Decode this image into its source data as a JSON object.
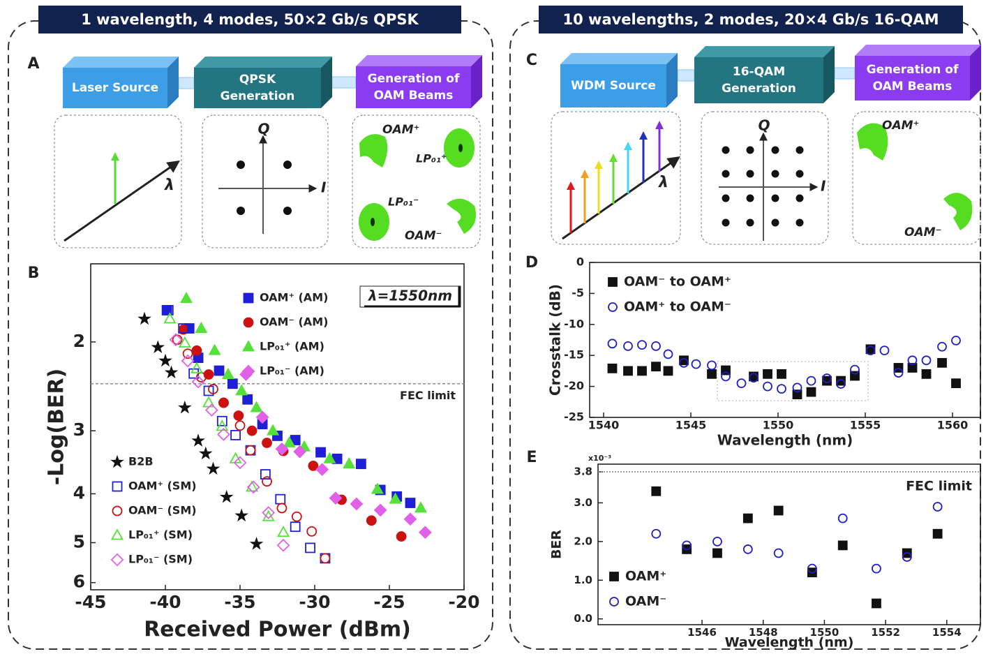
{
  "headers": [
    "1 wavelength, 4 modes, 50×2 Gb/s QPSK",
    "10 wavelengths, 2 modes, 20×4 Gb/s 16-QAM"
  ],
  "panel_labels": [
    "A",
    "B",
    "C",
    "D",
    "E"
  ],
  "diagram_a": {
    "blocks": [
      [
        "Laser Source"
      ],
      [
        "QPSK",
        "Generation"
      ],
      [
        "Generation of",
        "OAM Beams"
      ]
    ],
    "wavelength": "λ",
    "q": "Q",
    "i": "I",
    "beams": [
      "OAM⁺",
      "LP₀₁⁺",
      "LP₀₁⁻",
      "OAM⁻"
    ]
  },
  "diagram_c": {
    "blocks": [
      [
        "WDM Source"
      ],
      [
        "16-QAM",
        "Generation"
      ],
      [
        "Generation of",
        "OAM Beams"
      ]
    ],
    "wavelength": "λ",
    "q": "Q",
    "i": "I",
    "beams": [
      "OAM⁺",
      "OAM⁻"
    ]
  },
  "chart_data": [
    {
      "type": "scatter",
      "x_label": "Received Power (dBm)",
      "y_label": "-Log(BER)",
      "annotation": "λ=1550nm",
      "xlim": [
        -45,
        -20
      ],
      "xticks": [
        -45,
        -40,
        -35,
        -30,
        -25,
        -20
      ],
      "ylim": [
        6.2,
        1.4
      ],
      "yticks": [
        2,
        3,
        4,
        5,
        6
      ],
      "log_y": true,
      "reference_lines": [
        {
          "value": 2.42,
          "label": "FEC limit"
        }
      ],
      "series": [
        {
          "name": "OAM⁺ (AM)",
          "color": "#1f1fd6",
          "marker": "square",
          "filled": true,
          "x": [
            -39.9,
            -38.4,
            -37.8,
            -36.4,
            -35.5,
            -34.5,
            -33.5,
            -32.5,
            -31.3,
            -29.6,
            -28.5,
            -26.9,
            -25.6,
            -24.5,
            -23.6
          ],
          "values": [
            1.73,
            1.88,
            2.15,
            2.28,
            2.42,
            2.6,
            2.91,
            3.07,
            3.13,
            3.31,
            3.41,
            3.49,
            3.93,
            4.05,
            4.17
          ]
        },
        {
          "name": "OAM⁻ (AM)",
          "color": "#cc1111",
          "marker": "circle",
          "filled": true,
          "x": [
            -38.8,
            -37.9,
            -37.1,
            -36.1,
            -35.1,
            -34.2,
            -33.2,
            -32.1,
            -30.1,
            -28.2,
            -26.2,
            -24.2
          ],
          "values": [
            1.89,
            2.08,
            2.32,
            2.64,
            2.8,
            3.0,
            3.17,
            3.29,
            3.52,
            4.11,
            4.52,
            4.86
          ]
        },
        {
          "name": "LP₀₁⁺ (AM)",
          "color": "#55e03a",
          "marker": "triangle",
          "filled": true,
          "x": [
            -38.6,
            -37.6,
            -36.7,
            -35.8,
            -34.9,
            -33.9,
            -32.8,
            -31.7,
            -30.7,
            -29.0,
            -27.7,
            -25.8,
            -24.6,
            -22.9
          ],
          "values": [
            1.64,
            1.88,
            2.08,
            2.32,
            2.5,
            2.7,
            3.0,
            3.17,
            3.23,
            3.41,
            3.49,
            3.92,
            4.1,
            4.27
          ]
        },
        {
          "name": "LP₀₁⁻ (AM)",
          "color": "#e060e8",
          "marker": "diamond",
          "filled": true,
          "x": [
            -34.6,
            -33.5,
            -32.2,
            -31.0,
            -29.5,
            -28.6,
            -27.2,
            -25.6,
            -23.6,
            -22.6
          ],
          "values": [
            2.32,
            2.82,
            3.26,
            3.3,
            3.58,
            4.08,
            4.19,
            4.31,
            4.49,
            4.77
          ]
        },
        {
          "name": "B2B",
          "color": "#111111",
          "marker": "star",
          "filled": true,
          "x": [
            -41.4,
            -40.5,
            -40.0,
            -39.6,
            -38.7,
            -37.8,
            -37.3,
            -36.8,
            -35.9,
            -34.9,
            -33.9
          ],
          "values": [
            1.8,
            2.05,
            2.18,
            2.3,
            2.7,
            3.14,
            3.33,
            3.57,
            4.06,
            4.42,
            5.03
          ]
        },
        {
          "name": "OAM⁺ (SM)",
          "color": "#1f1fd6",
          "marker": "square",
          "filled": false,
          "x": [
            -39.8,
            -38.8,
            -38.1,
            -37.1,
            -36.2,
            -35.3,
            -34.3,
            -33.3,
            -32.3,
            -31.3,
            -30.3,
            -29.3
          ],
          "values": [
            1.73,
            1.88,
            2.31,
            2.5,
            2.87,
            3.06,
            3.28,
            3.66,
            4.1,
            4.65,
            5.12,
            5.37
          ]
        },
        {
          "name": "OAM⁻ (SM)",
          "color": "#cc1111",
          "marker": "circle",
          "filled": false,
          "x": [
            -39.2,
            -38.5,
            -37.6,
            -36.8,
            -36.1,
            -35.0,
            -34.3,
            -33.2,
            -32.2,
            -31.2,
            -30.2,
            -29.3
          ],
          "values": [
            1.98,
            2.11,
            2.35,
            2.48,
            2.64,
            2.93,
            3.28,
            3.78,
            4.27,
            4.44,
            4.75,
            5.37
          ]
        },
        {
          "name": "LP₀₁⁺ (SM)",
          "color": "#55e03a",
          "marker": "triangle",
          "filled": false,
          "x": [
            -39.7,
            -38.7,
            -37.9,
            -37.1,
            -36.2,
            -35.3,
            -34.2,
            -33.1,
            -32.1
          ],
          "values": [
            1.8,
            2.01,
            2.26,
            2.64,
            2.94,
            3.41,
            3.88,
            4.44,
            4.77
          ]
        },
        {
          "name": "LP₀₁⁻ (SM)",
          "color": "#e060e8",
          "marker": "diamond",
          "filled": false,
          "x": [
            -39.3,
            -38.5,
            -37.8,
            -36.9,
            -36.1,
            -35.0,
            -34.1,
            -33.1,
            -32.1
          ],
          "values": [
            1.98,
            2.18,
            2.4,
            2.73,
            3.05,
            3.47,
            3.88,
            4.36,
            5.06
          ]
        }
      ]
    },
    {
      "type": "scatter",
      "x_label": "Wavelength (nm)",
      "y_label": "Crosstalk (dB)",
      "xlim": [
        1539.2,
        1561.6
      ],
      "xticks": [
        1540,
        1545,
        1550,
        1555,
        1560
      ],
      "ylim": [
        -25,
        0
      ],
      "yticks": [
        0,
        -5,
        -10,
        -15,
        -20,
        -25
      ],
      "x": [
        1540.5,
        1541.4,
        1542.2,
        1543.0,
        1543.7,
        1544.6,
        1545.3,
        1546.2,
        1547.0,
        1547.9,
        1548.6,
        1549.4,
        1550.2,
        1551.1,
        1551.9,
        1552.8,
        1553.6,
        1554.4,
        1555.3,
        1556.1,
        1556.9,
        1557.7,
        1558.5,
        1559.4,
        1560.2
      ],
      "series": [
        {
          "name": "OAM⁻ to OAM⁺",
          "color": "#111111",
          "marker": "square",
          "filled": true,
          "values": [
            -17.1,
            -17.5,
            -17.5,
            -16.8,
            -17.5,
            -15.8,
            null,
            -18.0,
            -17.4,
            null,
            -18.4,
            -18.0,
            -18.0,
            -21.3,
            -20.9,
            -19.1,
            -19.1,
            -18.3,
            -14.0,
            null,
            -17.0,
            -17.0,
            -18.0,
            -16.2,
            -19.5
          ]
        },
        {
          "name": "OAM⁺ to OAM⁻",
          "color": "#2020c0",
          "marker": "circle",
          "filled": false,
          "values": [
            -13.1,
            -13.5,
            -13.3,
            -13.5,
            -14.8,
            -16.2,
            -16.4,
            -16.6,
            -18.4,
            -19.5,
            -18.6,
            -20.0,
            -20.4,
            -20.2,
            -19.1,
            -18.7,
            -19.6,
            -17.3,
            -14.2,
            -14.2,
            -17.8,
            -15.8,
            -15.8,
            -13.6,
            -12.6
          ]
        }
      ]
    },
    {
      "type": "scatter",
      "x_label": "Wavelength (nm)",
      "y_label": "BER",
      "y_multiplier": "x10⁻³",
      "xlim": [
        1542.6,
        1555.1
      ],
      "xticks": [
        1546,
        1548,
        1550,
        1552,
        1554
      ],
      "ylim": [
        -0.15,
        4.0
      ],
      "yticks": [
        {
          "value": 0,
          "label": "0.0"
        },
        {
          "value": 1,
          "label": "1.0"
        },
        {
          "value": 2,
          "label": "2.0"
        },
        {
          "value": 3,
          "label": "3.0"
        },
        3.8
      ],
      "reference_lines": [
        {
          "value": 3.8,
          "label": "FEC limit"
        }
      ],
      "x": [
        1544.5,
        1545.5,
        1546.5,
        1547.5,
        1548.5,
        1549.6,
        1550.6,
        1551.7,
        1552.7,
        1553.7
      ],
      "series": [
        {
          "name": "OAM⁺",
          "color": "#111111",
          "marker": "square",
          "filled": true,
          "values": [
            3.3,
            1.8,
            1.7,
            2.6,
            2.8,
            1.2,
            1.9,
            0.4,
            1.7,
            2.2
          ]
        },
        {
          "name": "OAM⁻",
          "color": "#2020c0",
          "marker": "circle",
          "filled": false,
          "values": [
            2.2,
            1.9,
            2.0,
            1.8,
            1.7,
            1.3,
            2.6,
            1.3,
            1.6,
            2.9
          ]
        }
      ]
    }
  ]
}
